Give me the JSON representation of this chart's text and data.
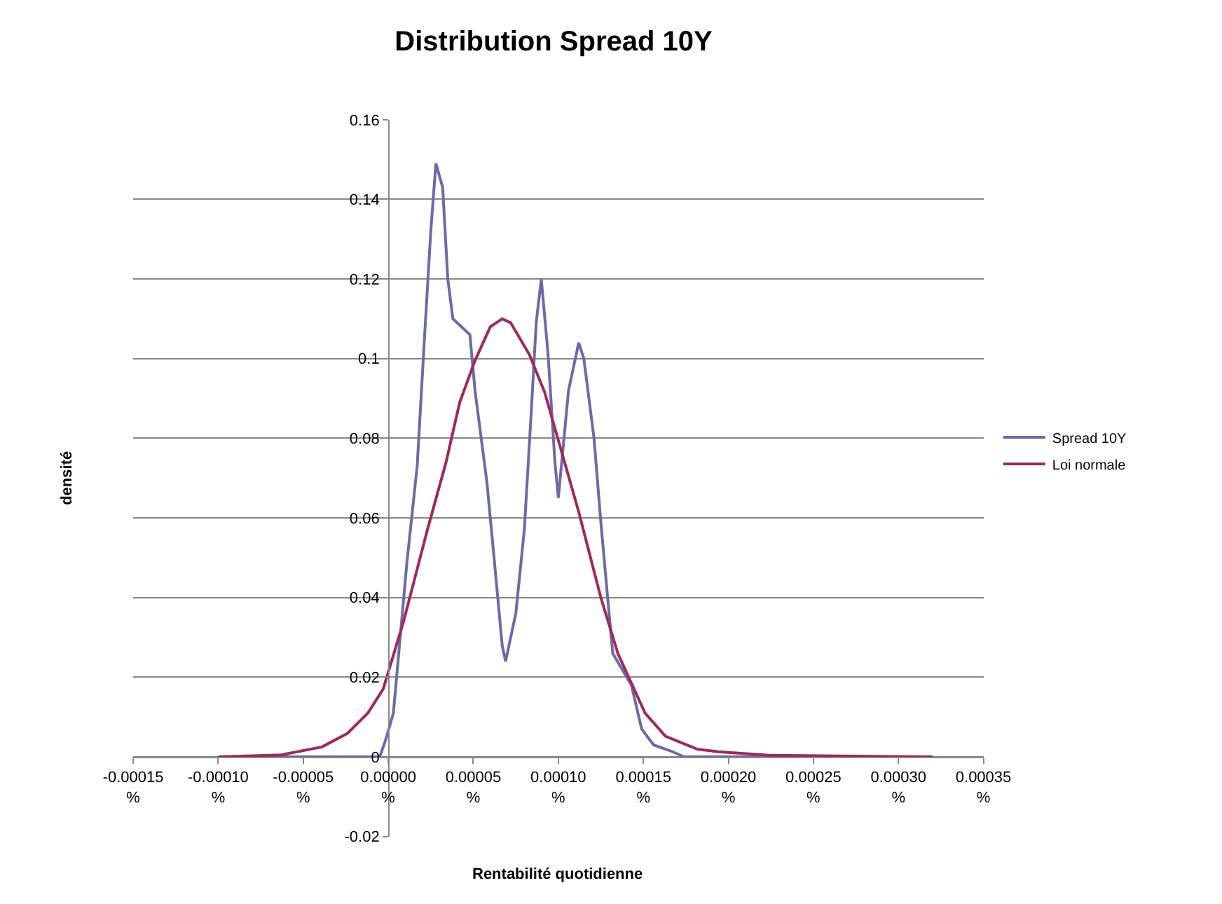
{
  "chart_data": {
    "type": "line",
    "title": "Distribution Spread 10Y",
    "xlabel": "Rentabilité quotidienne",
    "ylabel": "densité",
    "xlim": [
      -0.00015,
      0.00035
    ],
    "ylim": [
      -0.02,
      0.16
    ],
    "xticks": [
      {
        "value": -0.00015,
        "label": "-0.00015 %"
      },
      {
        "value": -0.0001,
        "label": "-0.00010 %"
      },
      {
        "value": -5e-05,
        "label": "-0.00005 %"
      },
      {
        "value": 0,
        "label": "0.00000 %"
      },
      {
        "value": 5e-05,
        "label": "0.00005 %"
      },
      {
        "value": 0.0001,
        "label": "0.00010 %"
      },
      {
        "value": 0.00015,
        "label": "0.00015 %"
      },
      {
        "value": 0.0002,
        "label": "0.00020 %"
      },
      {
        "value": 0.00025,
        "label": "0.00025 %"
      },
      {
        "value": 0.0003,
        "label": "0.00030 %"
      },
      {
        "value": 0.00035,
        "label": "0.00035 %"
      }
    ],
    "yticks": [
      -0.02,
      0,
      0.02,
      0.04,
      0.06,
      0.08,
      0.1,
      0.12,
      0.14,
      0.16
    ],
    "grid": "y",
    "legend": "right",
    "marker": "none",
    "line_style": "solid",
    "series": [
      {
        "name": "Spread 10Y",
        "color": "#6b6ba8",
        "x": [
          -0.0001,
          -5e-06,
          -1e-06,
          3e-06,
          1.1e-05,
          1.7e-05,
          2.1e-05,
          2.5e-05,
          2.8e-05,
          3.2e-05,
          3.5e-05,
          3.8e-05,
          4.3e-05,
          4.8e-05,
          5.1e-05,
          5.8e-05,
          6.2e-05,
          6.7e-05,
          6.9e-05,
          7.5e-05,
          8e-05,
          8.4e-05,
          8.7e-05,
          9e-05,
          9.4e-05,
          9.8e-05,
          0.0001,
          0.000106,
          0.000112,
          0.000115,
          0.000121,
          0.000125,
          0.000129,
          0.000132,
          0.000143,
          0.000149,
          0.000156,
          0.000166,
          0.000174,
          0.00032
        ],
        "values": [
          0,
          0,
          0.005,
          0.011,
          0.049,
          0.073,
          0.103,
          0.132,
          0.149,
          0.143,
          0.12,
          0.11,
          0.108,
          0.106,
          0.092,
          0.069,
          0.051,
          0.028,
          0.024,
          0.036,
          0.057,
          0.086,
          0.109,
          0.12,
          0.101,
          0.074,
          0.065,
          0.092,
          0.104,
          0.1,
          0.08,
          0.059,
          0.04,
          0.026,
          0.018,
          0.007,
          0.003,
          0.0015,
          0,
          0
        ]
      },
      {
        "name": "Loi normale",
        "color": "#a0285a",
        "x": [
          -0.0001,
          -6.3e-05,
          -3.9e-05,
          -2.4e-05,
          -1.2e-05,
          -3e-06,
          9e-06,
          2.3e-05,
          3.4e-05,
          4.2e-05,
          5.1e-05,
          6e-05,
          6.7e-05,
          7.2e-05,
          8.3e-05,
          9.2e-05,
          0.000101,
          0.000112,
          0.000125,
          0.000135,
          0.000151,
          0.000163,
          0.000182,
          0.000194,
          0.000224,
          0.00032
        ],
        "values": [
          0,
          0.0005,
          0.0025,
          0.0059,
          0.011,
          0.017,
          0.034,
          0.057,
          0.074,
          0.089,
          0.0995,
          0.108,
          0.11,
          0.109,
          0.101,
          0.0915,
          0.078,
          0.0615,
          0.04,
          0.026,
          0.011,
          0.0052,
          0.0019,
          0.0013,
          0.0004,
          0
        ]
      }
    ]
  }
}
